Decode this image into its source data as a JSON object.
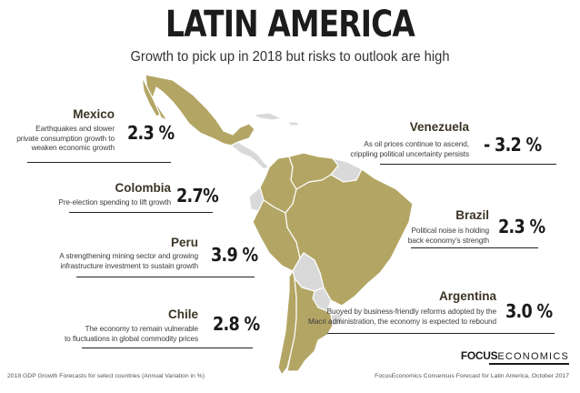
{
  "header": {
    "title": "LATIN AMERICA",
    "subtitle": "Growth to pick up in 2018 but risks to outlook are high"
  },
  "countries": {
    "mexico": {
      "name": "Mexico",
      "description": [
        "Earthquakes and slower",
        "private consumption growth to",
        "weaken economic growth"
      ],
      "value": "2.3 %"
    },
    "colombia": {
      "name": "Colombia",
      "description": [
        "Pre-election spending to lift growth"
      ],
      "value": "2.7%"
    },
    "peru": {
      "name": "Peru",
      "description": [
        "A strengthening mining sector and growing",
        "infrastructure investment to  sustain growth"
      ],
      "value": "3.9 %"
    },
    "chile": {
      "name": "Chile",
      "description": [
        "The economy to remain vulnerable",
        "to fluctuations in global commodity prices"
      ],
      "value": "2.8 %"
    },
    "venezuela": {
      "name": "Venezuela",
      "description": [
        "As oil prices continue to ascend,",
        "crippling political uncertainty persists"
      ],
      "value": "- 3.2 %"
    },
    "brazil": {
      "name": "Brazil",
      "description": [
        "Political noise is holding",
        "back economy's strength"
      ],
      "value": "2.3 %"
    },
    "argentina": {
      "name": "Argentina",
      "description": [
        "Buoyed by business-friendly reforms adopted by the",
        "Macri administration, the economy is expected to rebound"
      ],
      "value": "3.0 %"
    }
  },
  "colors": {
    "map_highlight": "#b3a564",
    "map_other": "#d9d9d9",
    "map_border": "#ffffff"
  },
  "footer": {
    "left": "2018 GDP Growth Forecasts for select countries (Annual Variation in %)",
    "right": "FocusEconomics Consensus Forecast for Latin America, October 2017",
    "logo_bold": "FOCUS",
    "logo_thin": "ECONOMICS"
  }
}
